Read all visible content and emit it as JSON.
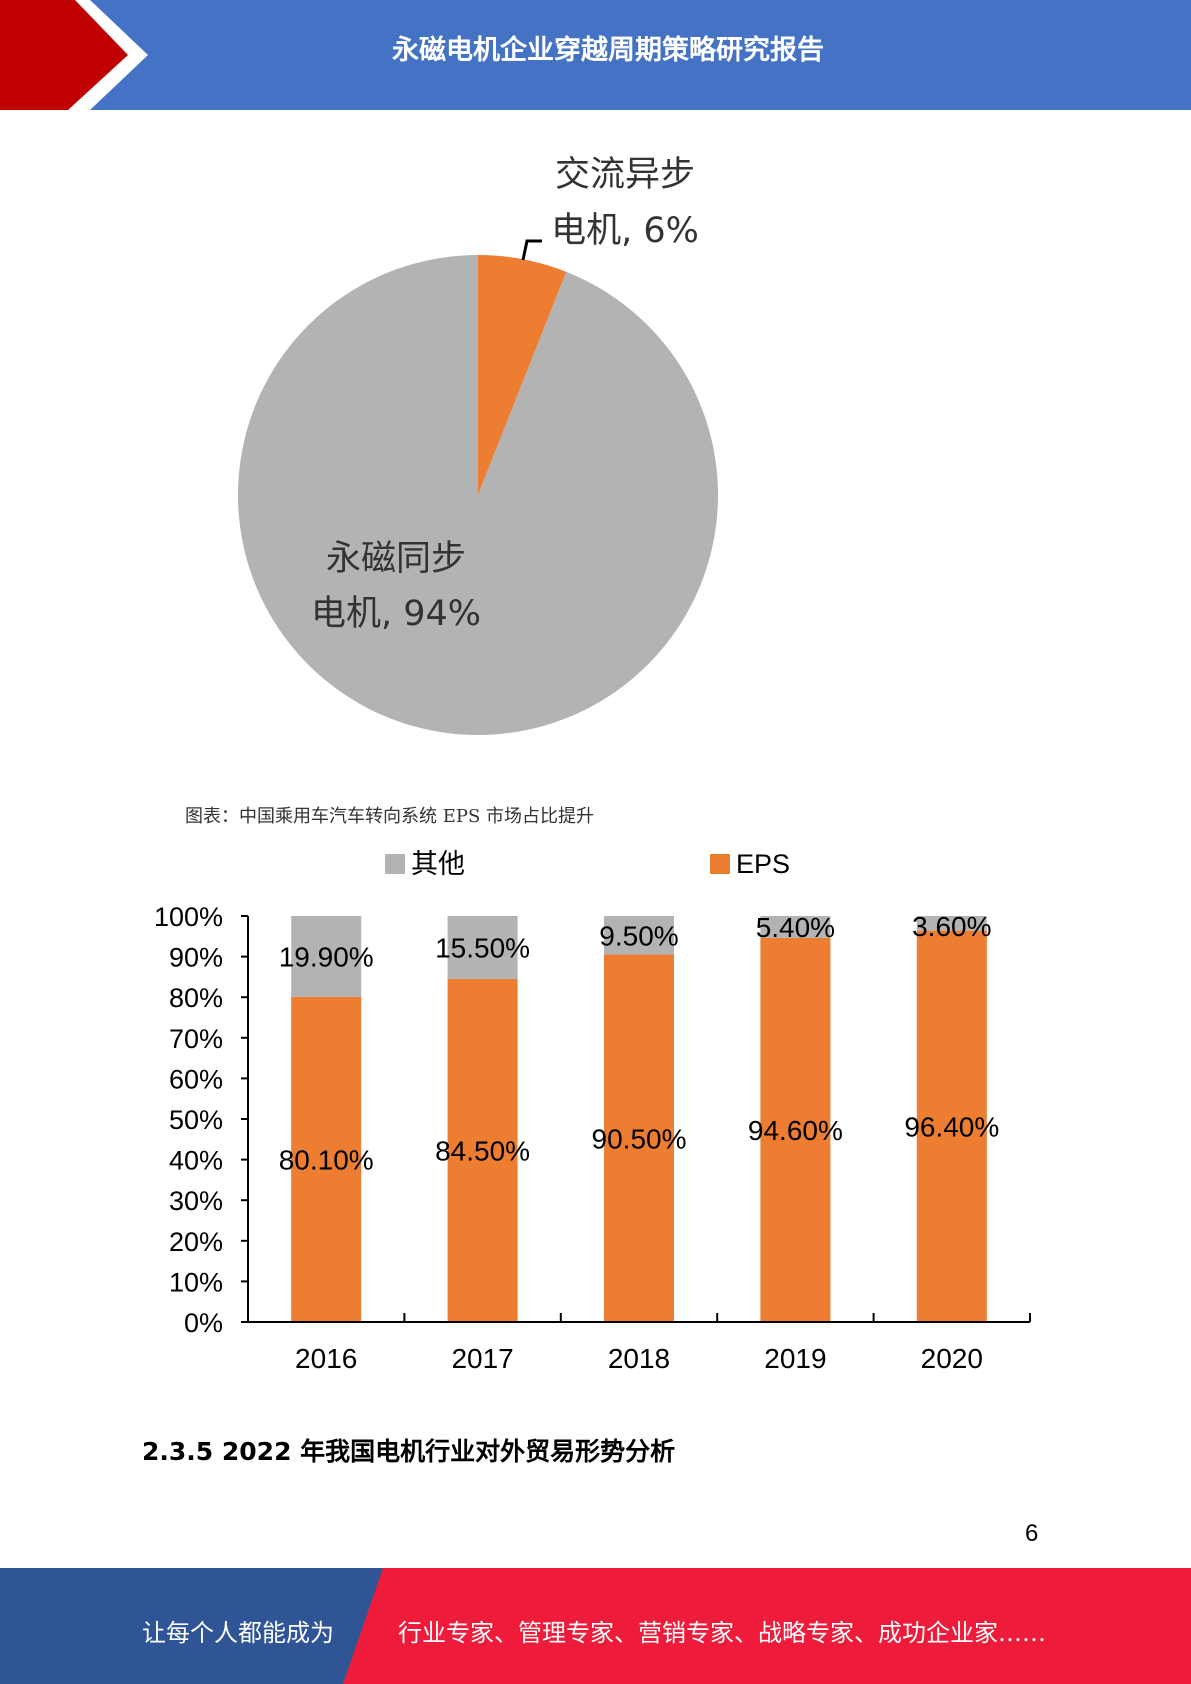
{
  "header": {
    "title": "永磁电机企业穿越周期策略研究报告"
  },
  "colors": {
    "header_blue": "#4472C4",
    "header_red": "#C00000",
    "orange": "#ED7D31",
    "gray": "#B3B3B3",
    "footer_blue": "#2F5597",
    "footer_red": "#EE1C3A"
  },
  "chart_data": [
    {
      "type": "pie",
      "slices": [
        {
          "label_line1": "永磁同步",
          "label_line2": "电机, 94%",
          "value": 94,
          "color": "#B3B3B3"
        },
        {
          "label_line1": "交流异步",
          "label_line2": "电机, 6%",
          "value": 6,
          "color": "#ED7D31"
        }
      ]
    },
    {
      "type": "bar",
      "stacked": true,
      "categories": [
        "2016",
        "2017",
        "2018",
        "2019",
        "2020"
      ],
      "series": [
        {
          "name": "EPS",
          "values": [
            80.1,
            84.5,
            90.5,
            94.6,
            96.4
          ],
          "labels": [
            "80.10%",
            "84.50%",
            "90.50%",
            "94.60%",
            "96.40%"
          ],
          "color": "#ED7D31"
        },
        {
          "name": "其他",
          "values": [
            19.9,
            15.5,
            9.5,
            5.4,
            3.6
          ],
          "labels": [
            "19.90%",
            "15.50%",
            "9.50%",
            "5.40%",
            "3.60%"
          ],
          "color": "#B3B3B3"
        }
      ],
      "legend": {
        "items": [
          "其他",
          "EPS"
        ],
        "position": "top"
      },
      "yticks": [
        "0%",
        "10%",
        "20%",
        "30%",
        "40%",
        "50%",
        "60%",
        "70%",
        "80%",
        "90%",
        "100%"
      ],
      "ylim": [
        0,
        100
      ],
      "grid": false
    }
  ],
  "caption": "图表：中国乘用车汽车转向系统 EPS 市场占比提升",
  "section_heading": "2.3.5 2022 年我国电机行业对外贸易形势分析",
  "page_number": "6",
  "footer": {
    "left_text": "让每个人都能成为",
    "right_text": "行业专家、管理专家、营销专家、战略专家、成功企业家……"
  }
}
